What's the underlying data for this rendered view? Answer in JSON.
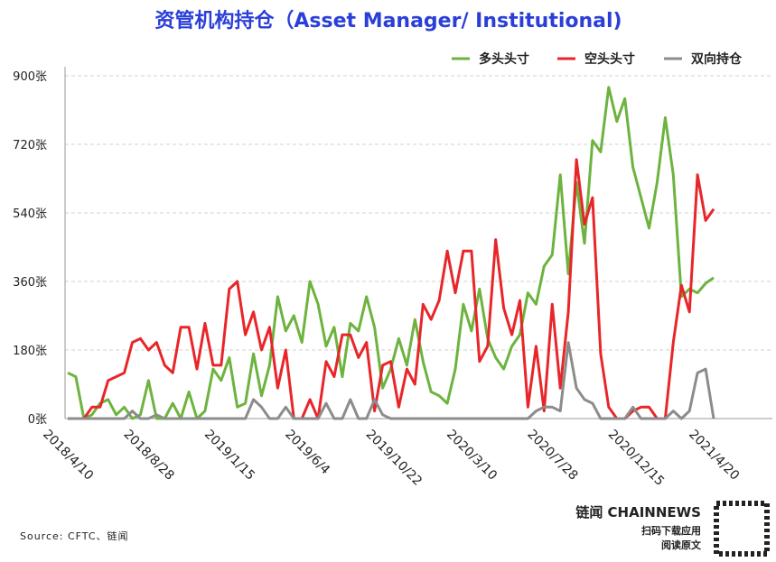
{
  "chart_data": {
    "type": "line",
    "title": "资管机构持仓（Asset Manager/ Institutional)",
    "source": "Source: CFTC、链闻",
    "brand": "链闻 CHAINNEWS",
    "brand_sub": "扫码下载应用",
    "brand_sub2": "阅读原文",
    "categories": [
      "2018/4/10",
      null,
      null,
      null,
      null,
      null,
      null,
      null,
      null,
      null,
      "2018/8/28",
      null,
      null,
      null,
      null,
      null,
      null,
      null,
      null,
      null,
      "2019/1/15",
      null,
      null,
      null,
      null,
      null,
      null,
      null,
      null,
      null,
      "2019/6/4",
      null,
      null,
      null,
      null,
      null,
      null,
      null,
      null,
      null,
      "2019/10/22",
      null,
      null,
      null,
      null,
      null,
      null,
      null,
      null,
      null,
      "2020/3/10",
      null,
      null,
      null,
      null,
      null,
      null,
      null,
      null,
      null,
      "2020/7/28",
      null,
      null,
      null,
      null,
      null,
      null,
      null,
      null,
      null,
      "2020/12/15",
      null,
      null,
      null,
      null,
      null,
      null,
      null,
      null,
      null,
      "2021/4/20"
    ],
    "series": [
      {
        "name": "多头头寸",
        "color": "#6db33f",
        "values": [
          120,
          110,
          0,
          10,
          40,
          50,
          10,
          30,
          0,
          10,
          100,
          0,
          0,
          40,
          0,
          70,
          0,
          20,
          130,
          100,
          160,
          30,
          40,
          170,
          60,
          140,
          320,
          230,
          270,
          200,
          360,
          300,
          190,
          240,
          110,
          250,
          230,
          320,
          240,
          80,
          130,
          210,
          140,
          260,
          150,
          70,
          60,
          40,
          130,
          300,
          230,
          340,
          210,
          160,
          130,
          190,
          220,
          330,
          300,
          400,
          430,
          640,
          380,
          620,
          460,
          730,
          700,
          870,
          780,
          840,
          660,
          580,
          500,
          620,
          790,
          640,
          320,
          340,
          330,
          355,
          370
        ]
      },
      {
        "name": "空头头寸",
        "color": "#e8262a",
        "values": [
          0,
          0,
          0,
          30,
          30,
          100,
          110,
          120,
          200,
          210,
          180,
          200,
          140,
          120,
          240,
          240,
          130,
          250,
          140,
          140,
          340,
          360,
          220,
          280,
          180,
          240,
          80,
          180,
          0,
          0,
          50,
          0,
          150,
          110,
          220,
          220,
          160,
          200,
          20,
          140,
          150,
          30,
          130,
          90,
          300,
          260,
          310,
          440,
          330,
          440,
          440,
          150,
          190,
          470,
          290,
          220,
          310,
          30,
          190,
          20,
          300,
          80,
          280,
          680,
          510,
          580,
          170,
          30,
          0,
          0,
          20,
          30,
          30,
          0,
          0,
          200,
          350,
          280,
          640,
          520,
          550
        ]
      },
      {
        "name": "双向持仓",
        "color": "#8c8c8c",
        "values": [
          0,
          0,
          0,
          0,
          0,
          0,
          0,
          0,
          20,
          0,
          0,
          10,
          0,
          0,
          0,
          0,
          0,
          0,
          0,
          0,
          0,
          0,
          0,
          50,
          30,
          0,
          0,
          30,
          0,
          0,
          0,
          0,
          40,
          0,
          0,
          50,
          0,
          0,
          50,
          10,
          0,
          0,
          0,
          0,
          0,
          0,
          0,
          0,
          0,
          0,
          0,
          0,
          0,
          0,
          0,
          0,
          0,
          0,
          20,
          30,
          30,
          20,
          200,
          80,
          50,
          40,
          0,
          0,
          0,
          0,
          30,
          0,
          0,
          0,
          0,
          20,
          0,
          20,
          120,
          130,
          0
        ]
      }
    ],
    "ylim": [
      0,
      900
    ],
    "yticks": [
      {
        "value": 0,
        "label": "0张"
      },
      {
        "value": 180,
        "label": "180张"
      },
      {
        "value": 360,
        "label": "360张"
      },
      {
        "value": 540,
        "label": "540张"
      },
      {
        "value": 720,
        "label": "720张"
      },
      {
        "value": 900,
        "label": "900张"
      }
    ],
    "grid": true
  }
}
